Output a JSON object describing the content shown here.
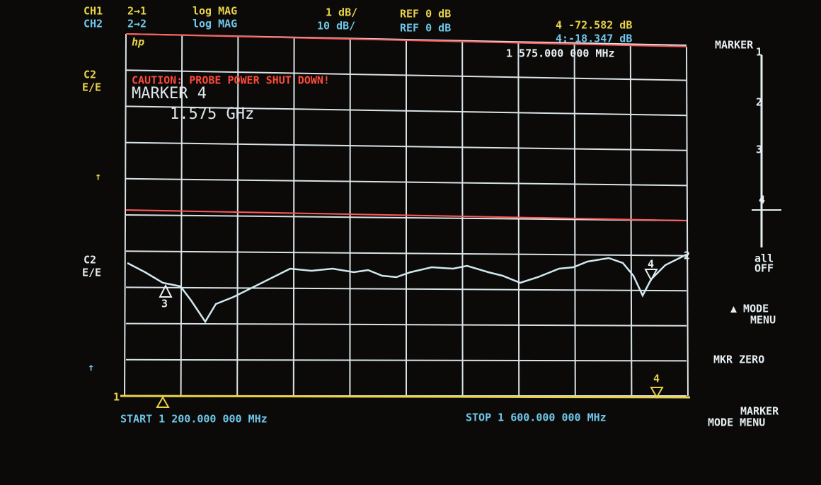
{
  "header": {
    "ch1": {
      "label": "CH1",
      "path": "2→1",
      "format": "log MAG",
      "scale": "1 dB/",
      "ref": "REF 0 dB"
    },
    "ch2": {
      "label": "CH2",
      "path": "2→2",
      "format": "log MAG",
      "scale": "10 dB/",
      "ref": "REF 0 dB"
    },
    "marker_readout_1": "4 -72.582 dB",
    "marker_readout_2": "4:-18.347 dB",
    "marker_freq": "1 575.000 000 MHz",
    "logo": "hp"
  },
  "left": {
    "c2_top": "C2",
    "ee_top": "E/E",
    "arrow_top": "↑",
    "c2_mid": "C2",
    "ee_mid": "E/E",
    "arrow_bottom": "↑",
    "ref_pos": "1"
  },
  "screen": {
    "caution": "CAUTION: PROBE POWER SHUT DOWN!",
    "marker_title": "MARKER 4",
    "marker_value": "1.575 GHz",
    "trace_markers": [
      "3",
      "4",
      "4",
      "2"
    ]
  },
  "footer": {
    "start": "START 1 200.000 000 MHz",
    "stop": "STOP 1 600.000 000 MHz"
  },
  "softkeys": {
    "marker": "MARKER",
    "m1": "1",
    "m2": "2",
    "m3": "3",
    "m4": "4",
    "all": "all",
    "off": "OFF",
    "mode_menu": [
      "▲ MODE",
      "MENU"
    ],
    "mkr_zero": "MKR ZERO",
    "marker_mode_menu": [
      "MARKER",
      "MODE MENU"
    ]
  }
}
